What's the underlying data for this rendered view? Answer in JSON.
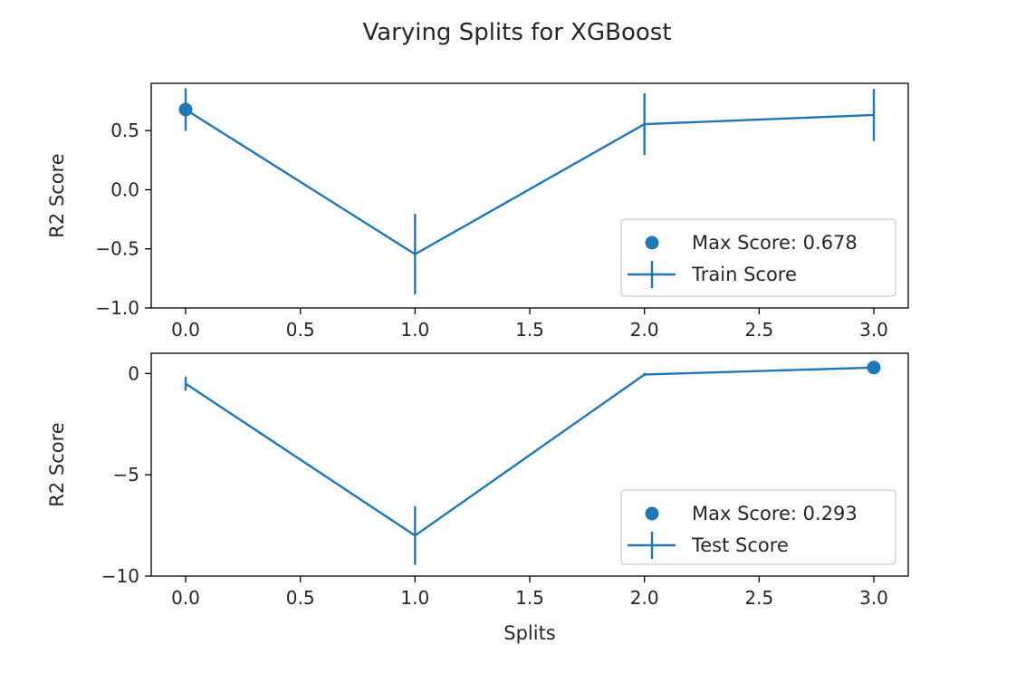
{
  "figure": {
    "suptitle": "Varying Splits for XGBoost",
    "line_color": "#1f77b4",
    "marker_color": "#1f77b4"
  },
  "chart_data": [
    {
      "type": "line",
      "subplot": "top",
      "title": "",
      "xlabel": "",
      "ylabel": "R2 Score",
      "xlim": [
        -0.15,
        3.15
      ],
      "ylim": [
        -1.0,
        0.9
      ],
      "x_ticks": [
        0.0,
        0.5,
        1.0,
        1.5,
        2.0,
        2.5,
        3.0
      ],
      "x_tick_labels": [
        "0.0",
        "0.5",
        "1.0",
        "1.5",
        "2.0",
        "2.5",
        "3.0"
      ],
      "y_ticks": [
        -1.0,
        -0.5,
        0.0,
        0.5
      ],
      "y_tick_labels": [
        "−1.0",
        "−0.5",
        "0.0",
        "0.5"
      ],
      "grid": false,
      "legend_position": "lower-right",
      "series": [
        {
          "name": "Train Score",
          "style": "errorbar-line",
          "x": [
            0,
            1,
            2,
            3
          ],
          "y": [
            0.678,
            -0.545,
            0.555,
            0.632
          ],
          "yerr": [
            0.18,
            0.34,
            0.26,
            0.22
          ]
        }
      ],
      "highlight": {
        "name": "Max Score: 0.678",
        "x": 0,
        "y": 0.678
      }
    },
    {
      "type": "line",
      "subplot": "bottom",
      "title": "",
      "xlabel": "Splits",
      "ylabel": "R2 Score",
      "xlim": [
        -0.15,
        3.15
      ],
      "ylim": [
        -10.0,
        1.0
      ],
      "x_ticks": [
        0.0,
        0.5,
        1.0,
        1.5,
        2.0,
        2.5,
        3.0
      ],
      "x_tick_labels": [
        "0.0",
        "0.5",
        "1.0",
        "1.5",
        "2.0",
        "2.5",
        "3.0"
      ],
      "y_ticks": [
        -10,
        -5,
        0
      ],
      "y_tick_labels": [
        "−10",
        "−5",
        "0"
      ],
      "grid": false,
      "legend_position": "lower-right",
      "series": [
        {
          "name": "Test Score",
          "style": "errorbar-line",
          "x": [
            0,
            1,
            2,
            3
          ],
          "y": [
            -0.5,
            -8.0,
            -0.05,
            0.293
          ],
          "yerr": [
            0.35,
            1.45,
            0.08,
            0.15
          ]
        }
      ],
      "highlight": {
        "name": "Max Score: 0.293",
        "x": 3,
        "y": 0.293
      }
    }
  ]
}
